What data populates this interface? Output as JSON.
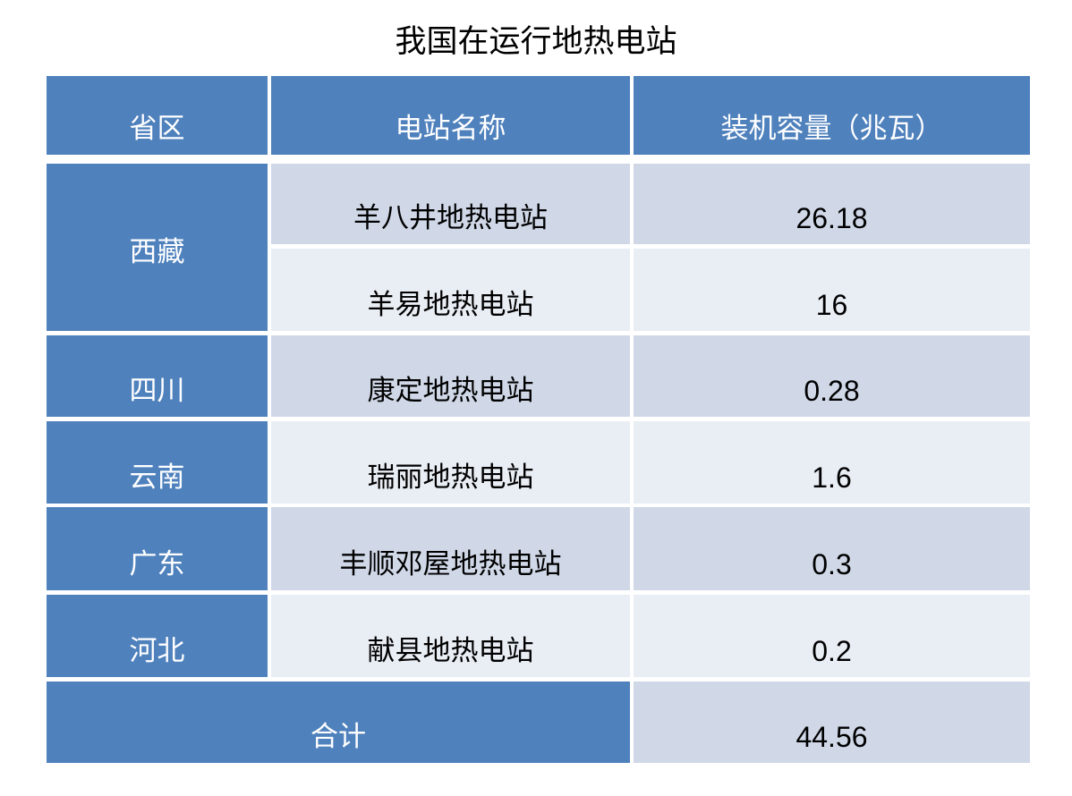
{
  "title": "我国在运行地热电站",
  "headers": [
    "省区",
    "电站名称",
    "装机容量（兆瓦）"
  ],
  "rows": [
    {
      "province": "西藏",
      "station": "羊八井地热电站",
      "capacity": "26.18"
    },
    {
      "province": "",
      "station": "羊易地热电站",
      "capacity": "16"
    },
    {
      "province": "四川",
      "station": "康定地热电站",
      "capacity": "0.28"
    },
    {
      "province": "云南",
      "station": "瑞丽地热电站",
      "capacity": "1.6"
    },
    {
      "province": "广东",
      "station": "丰顺邓屋地热电站",
      "capacity": "0.3"
    },
    {
      "province": "河北",
      "station": "献县地热电站",
      "capacity": "0.2"
    }
  ],
  "total": {
    "label": "合计",
    "value": "44.56"
  },
  "colors": {
    "header": "#4F81BD",
    "row_dark": "#D0D8E8",
    "row_light": "#E9EDF4"
  }
}
